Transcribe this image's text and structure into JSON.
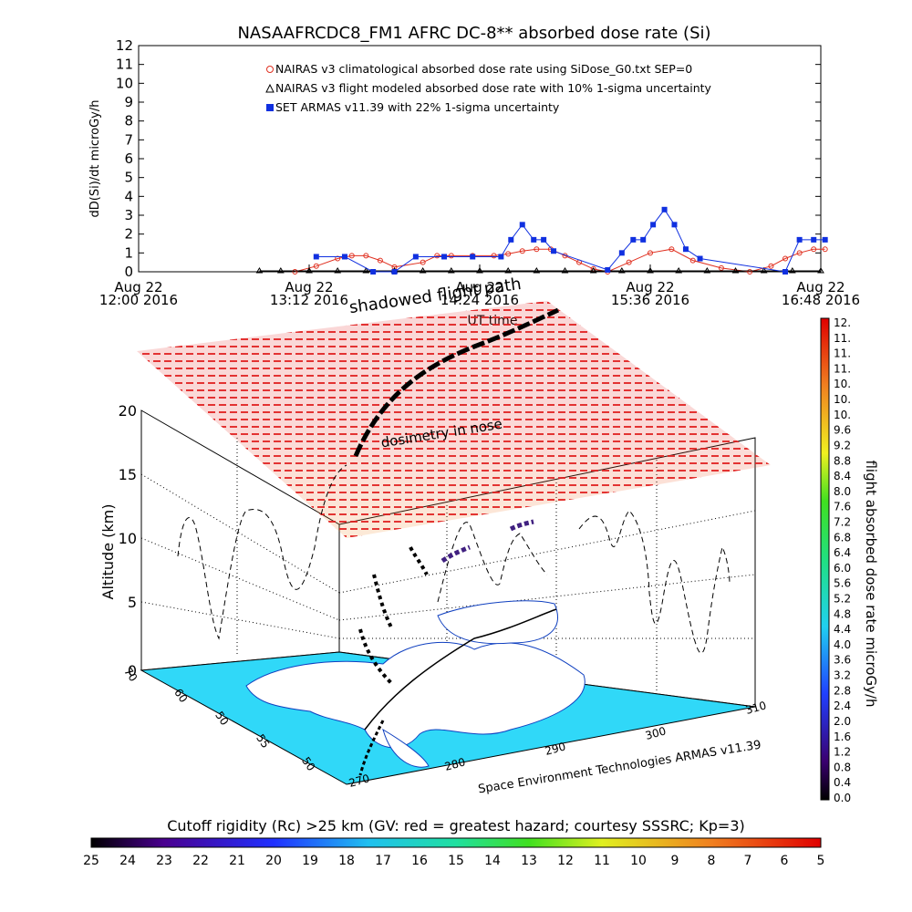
{
  "chart_data": [
    {
      "type": "line",
      "title": "NASAAFRCDC8_FM1 AFRC DC-8** absorbed dose rate (Si)",
      "ylabel": "dD(Si)/dt microGy/h",
      "ylim": [
        0,
        12
      ],
      "yticks": [
        "0",
        "1",
        "2",
        "3",
        "4",
        "5",
        "6",
        "7",
        "8",
        "9",
        "10",
        "11",
        "12"
      ],
      "xticks": [
        {
          "date": "Aug 22",
          "time": "12:00 2016"
        },
        {
          "date": "Aug 22",
          "time": "13:12 2016"
        },
        {
          "date": "Aug 22",
          "time": "14:24 2016"
        },
        {
          "date": "Aug 22",
          "time": "15:36 2016"
        },
        {
          "date": "Aug 22",
          "time": "16:48 2016"
        }
      ],
      "xlabel": "UT time",
      "legend": [
        {
          "label": "NAIRAS v3 climatological absorbed dose rate using SiDose_G0.txt SEP=0",
          "color": "#e03020",
          "marker": "x-circle"
        },
        {
          "label": "NAIRAS v3 flight modeled absorbed dose rate with 10% 1-sigma uncertainty",
          "color": "#000000",
          "marker": "triangle"
        },
        {
          "label": "SET ARMAS v11.39 with 22% 1-sigma uncertainty",
          "color": "#1030e0",
          "marker": "square"
        }
      ],
      "series": [
        {
          "name": "NAIRAS v3 climatological absorbed dose rate using SiDose_G0.txt SEP=0",
          "x_hours": [
            13.1,
            13.25,
            13.4,
            13.5,
            13.6,
            13.7,
            13.8,
            14.0,
            14.1,
            14.2,
            14.35,
            14.5,
            14.6,
            14.7,
            14.8,
            14.9,
            15.0,
            15.1,
            15.2,
            15.3,
            15.45,
            15.6,
            15.75,
            15.9,
            16.1,
            16.3,
            16.45,
            16.55,
            16.65,
            16.75,
            16.83
          ],
          "values": [
            0.0,
            0.3,
            0.7,
            0.85,
            0.85,
            0.6,
            0.25,
            0.5,
            0.85,
            0.85,
            0.85,
            0.85,
            0.95,
            1.1,
            1.2,
            1.2,
            0.85,
            0.5,
            0.15,
            0.0,
            0.5,
            1.0,
            1.2,
            0.6,
            0.2,
            0.0,
            0.3,
            0.7,
            1.0,
            1.2,
            1.2
          ]
        },
        {
          "name": "NAIRAS v3 flight modeled absorbed dose rate with 10% 1-sigma uncertainty",
          "x_hours": [
            12.85,
            13.0,
            13.2,
            13.4,
            13.6,
            13.8,
            14.0,
            14.2,
            14.4,
            14.6,
            14.8,
            15.0,
            15.2,
            15.4,
            15.6,
            15.8,
            16.0,
            16.2,
            16.4,
            16.6,
            16.8
          ],
          "values": [
            0.05,
            0.05,
            0.05,
            0.05,
            0.05,
            0.05,
            0.05,
            0.05,
            0.05,
            0.05,
            0.05,
            0.05,
            0.05,
            0.05,
            0.05,
            0.05,
            0.05,
            0.05,
            0.05,
            0.05,
            0.05
          ]
        },
        {
          "name": "SET ARMAS v11.39 with 22% 1-sigma uncertainty",
          "x_hours": [
            13.25,
            13.45,
            13.65,
            13.8,
            13.95,
            14.15,
            14.35,
            14.55,
            14.62,
            14.7,
            14.78,
            14.85,
            14.92,
            15.3,
            15.4,
            15.48,
            15.55,
            15.62,
            15.7,
            15.77,
            15.85,
            15.95,
            16.55,
            16.65,
            16.75,
            16.83
          ],
          "values": [
            0.8,
            0.8,
            0.0,
            0.0,
            0.8,
            0.8,
            0.8,
            0.8,
            1.7,
            2.5,
            1.7,
            1.7,
            1.1,
            0.1,
            1.0,
            1.7,
            1.7,
            2.5,
            3.3,
            2.5,
            1.2,
            0.7,
            0.0,
            1.7,
            1.7,
            1.7
          ]
        }
      ]
    },
    {
      "type": "scatter",
      "title": "shadowed flight path",
      "annotation": "dosimetry in nose",
      "zlabel": "Altitude (km)",
      "zticks": [
        "0",
        "5",
        "10",
        "15",
        "20"
      ],
      "lat_ticks": [
        "70",
        "60",
        "50",
        "55",
        "50"
      ],
      "lon_ticks": [
        "270",
        "280",
        "290",
        "300",
        "310"
      ],
      "credit": "Space Environment Technologies ARMAS v11.39",
      "colorbar": {
        "label": "flight absorbed dose rate microGy/h",
        "ticks": [
          "12.",
          "11.",
          "11.",
          "11.",
          "10.",
          "10.",
          "10.",
          "9.6",
          "9.2",
          "8.8",
          "8.4",
          "8.0",
          "7.6",
          "7.2",
          "6.8",
          "6.4",
          "6.0",
          "5.6",
          "5.2",
          "4.8",
          "4.4",
          "4.0",
          "3.6",
          "3.2",
          "2.8",
          "2.4",
          "2.0",
          "1.6",
          "1.2",
          "0.8",
          "0.4",
          "0.0"
        ]
      }
    },
    {
      "type": "heatmap",
      "title": "Cutoff rigidity (Rc) >25 km (GV: red = greatest hazard; courtesy SSSRC; Kp=3)",
      "ticks": [
        "25",
        "24",
        "23",
        "22",
        "21",
        "20",
        "19",
        "18",
        "17",
        "16",
        "15",
        "14",
        "13",
        "12",
        "11",
        "10",
        "9",
        "8",
        "7",
        "6",
        "5"
      ]
    }
  ],
  "colors": {
    "red": "#e02020",
    "orange": "#f08020",
    "blue": "#1030e0",
    "cyan": "#20d0f0",
    "land": "#ffffff"
  }
}
